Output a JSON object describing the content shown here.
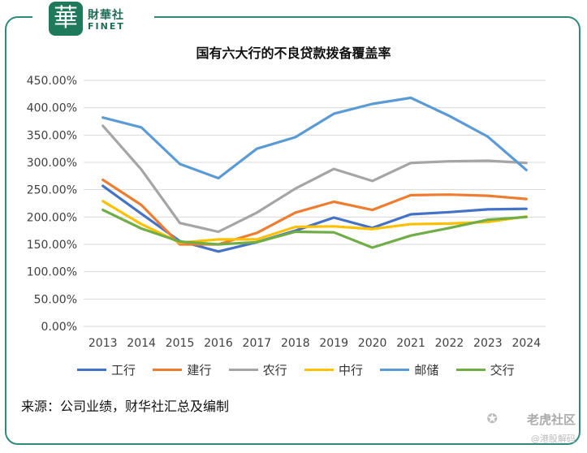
{
  "brand": {
    "badge": "華",
    "name_cn": "財華社",
    "name_en": "FINET"
  },
  "source_note": "来源：公司业绩，财华社汇总及编制",
  "corner_watermark": {
    "name": "老虎社区",
    "handle": "@港股解码",
    "icon": "tiger-logo-icon"
  },
  "colors": {
    "frame": "#2e8b7a",
    "grid": "#d9d9d9",
    "axis_text": "#404040"
  },
  "chart_data": {
    "type": "line",
    "title": "国有六大行的不良贷款拨备覆盖率",
    "x": [
      "2013",
      "2014",
      "2015",
      "2016",
      "2017",
      "2018",
      "2019",
      "2020",
      "2021",
      "2022",
      "2023",
      "2024"
    ],
    "ylim": [
      0,
      450
    ],
    "yticks": [
      "0.00%",
      "50.00%",
      "100.00%",
      "150.00%",
      "200.00%",
      "250.00%",
      "300.00%",
      "350.00%",
      "400.00%",
      "450.00%"
    ],
    "grid": true,
    "legend_position": "bottom",
    "series": [
      {
        "name": "工行",
        "color": "#4472c4",
        "values": [
          257,
          206,
          156,
          137,
          154,
          175,
          199,
          180,
          205,
          209,
          214,
          215
        ]
      },
      {
        "name": "建行",
        "color": "#ed7d31",
        "values": [
          268,
          222,
          150,
          150,
          171,
          208,
          228,
          213,
          240,
          241,
          239,
          233
        ]
      },
      {
        "name": "农行",
        "color": "#a5a5a5",
        "values": [
          367,
          287,
          189,
          173,
          208,
          252,
          288,
          266,
          299,
          302,
          303,
          299
        ]
      },
      {
        "name": "中行",
        "color": "#ffc000",
        "values": [
          229,
          187,
          153,
          159,
          159,
          182,
          183,
          178,
          187,
          188,
          191,
          201
        ]
      },
      {
        "name": "邮储",
        "color": "#5b9bd5",
        "values": [
          382,
          364,
          297,
          271,
          325,
          346,
          389,
          407,
          418,
          385,
          347,
          286
        ]
      },
      {
        "name": "交行",
        "color": "#70ad47",
        "values": [
          213,
          179,
          155,
          150,
          154,
          173,
          172,
          144,
          166,
          180,
          195,
          200
        ]
      }
    ]
  }
}
